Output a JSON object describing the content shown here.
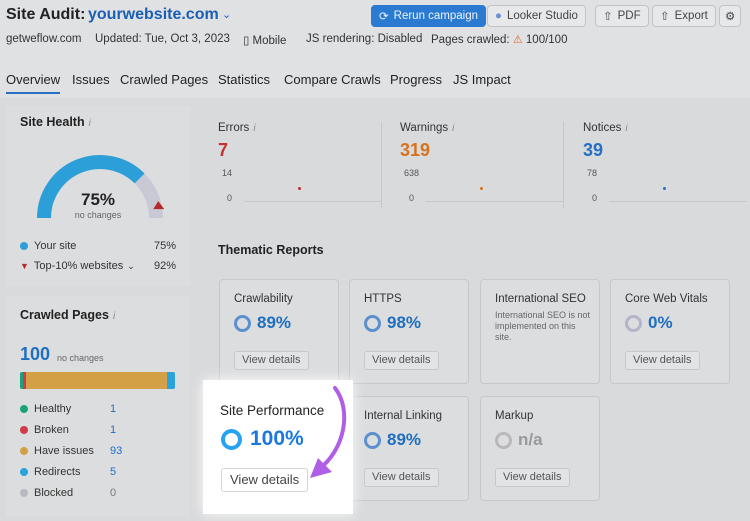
{
  "header": {
    "title_label": "Site Audit:",
    "domain": "yourwebsite.com",
    "buttons": {
      "rerun": "Rerun campaign",
      "looker": "Looker Studio",
      "pdf": "PDF",
      "export": "Export"
    },
    "meta": {
      "site": "getweflow.com",
      "updated": "Updated: Tue, Oct 3, 2023",
      "device": "Mobile",
      "js_rendering": "JS rendering: Disabled",
      "pages_crawled_label": "Pages crawled:",
      "pages_crawled_value": "100/100"
    }
  },
  "tabs": [
    "Overview",
    "Issues",
    "Crawled Pages",
    "Statistics",
    "Compare Crawls",
    "Progress",
    "JS Impact"
  ],
  "site_health": {
    "title": "Site Health",
    "score": "75%",
    "score_fraction": 0.75,
    "top10_fraction": 0.92,
    "change": "no changes",
    "legend": [
      {
        "label": "Your site",
        "value": "75%",
        "color": "#2d9fd8"
      },
      {
        "label": "Top-10% websites",
        "value": "92%",
        "color": "#b5292a"
      }
    ]
  },
  "crawled_pages": {
    "title": "Crawled Pages",
    "total": "100",
    "change": "no changes",
    "legend": [
      {
        "label": "Healthy",
        "value": "1",
        "color": "#1aa37a"
      },
      {
        "label": "Broken",
        "value": "1",
        "color": "#d23b47"
      },
      {
        "label": "Have issues",
        "value": "93",
        "color": "#d4a045"
      },
      {
        "label": "Redirects",
        "value": "5",
        "color": "#2aa2dc"
      },
      {
        "label": "Blocked",
        "value": "0",
        "color": "#b9b9c2"
      }
    ]
  },
  "metrics": [
    {
      "label": "Errors",
      "value": "7",
      "color": "#c43030",
      "max": "14",
      "min": "0"
    },
    {
      "label": "Warnings",
      "value": "319",
      "color": "#d9721e",
      "max": "638",
      "min": "0"
    },
    {
      "label": "Notices",
      "value": "39",
      "color": "#2570c4",
      "max": "78",
      "min": "0"
    }
  ],
  "thematic": {
    "title": "Thematic Reports",
    "view_details": "View details",
    "cards": [
      {
        "title": "Crawlability",
        "value": "89%"
      },
      {
        "title": "HTTPS",
        "value": "98%"
      },
      {
        "title": "International SEO",
        "note": "International SEO is not implemented on this site."
      },
      {
        "title": "Core Web Vitals",
        "value": "0%"
      },
      {
        "title": "Site Performance",
        "value": "100%"
      },
      {
        "title": "Internal Linking",
        "value": "89%"
      },
      {
        "title": "Markup",
        "value": "n/a"
      }
    ]
  }
}
